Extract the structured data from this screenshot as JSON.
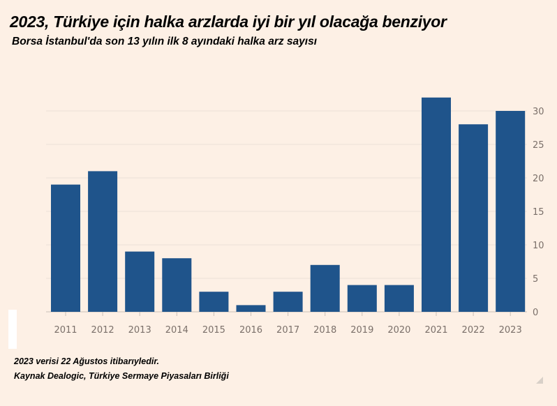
{
  "title": "2023, Türkiye için halka arzlarda iyi bir yıl olacağa benziyor",
  "subtitle": "Borsa İstanbul'da son 13 yılın ilk 8 ayındaki halka arz sayısı",
  "notes": [
    "2023 verisi 22 Ağustos itibarıyledir.",
    "Kaynak Dealogic, Türkiye Sermaye Piyasaları Birliği"
  ],
  "colors": {
    "bar": "#1f548b",
    "grid": "#eadfd6",
    "background": "#fdf0e5"
  },
  "chart_data": {
    "type": "bar",
    "title": "2023, Türkiye için halka arzlarda iyi bir yıl olacağa benziyor",
    "subtitle": "Borsa İstanbul'da son 13 yılın ilk 8 ayındaki halka arz sayısı",
    "categories": [
      "2011",
      "2012",
      "2013",
      "2014",
      "2015",
      "2016",
      "2017",
      "2018",
      "2019",
      "2020",
      "2021",
      "2022",
      "2023"
    ],
    "values": [
      19,
      21,
      9,
      8,
      3,
      1,
      3,
      7,
      4,
      4,
      32,
      28,
      30
    ],
    "xlabel": "",
    "ylabel": "",
    "ylim": [
      0,
      30
    ],
    "yticks": [
      0,
      5,
      10,
      15,
      20,
      25,
      30
    ],
    "y_axis_side": "right",
    "grid": true
  }
}
